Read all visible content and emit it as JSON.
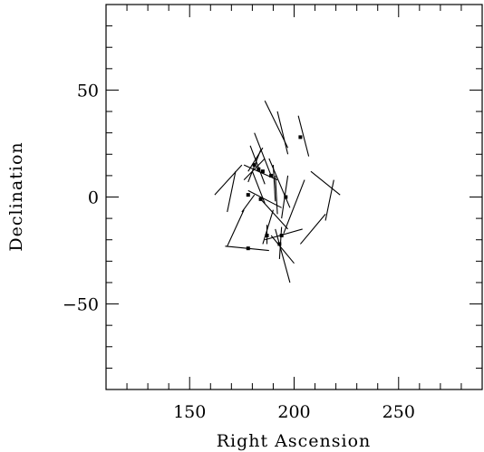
{
  "chart_data": {
    "type": "scatter",
    "xlabel": "Right Ascension",
    "ylabel": "Declination",
    "xlim": [
      110,
      290
    ],
    "ylim": [
      -90,
      90
    ],
    "xticks": [
      150,
      200,
      250
    ],
    "yticks": [
      -50,
      0,
      50
    ],
    "xminor_step": 10,
    "yminor_step": 10,
    "color": "#000000",
    "segments": [
      {
        "x1": 186,
        "y1": 45,
        "x2": 197,
        "y2": 23
      },
      {
        "x1": 192,
        "y1": 40,
        "x2": 197,
        "y2": 20
      },
      {
        "x1": 202,
        "y1": 38,
        "x2": 207,
        "y2": 19
      },
      {
        "x1": 179,
        "y1": 24,
        "x2": 186,
        "y2": 6
      },
      {
        "x1": 181,
        "y1": 30,
        "x2": 189,
        "y2": 10
      },
      {
        "x1": 185,
        "y1": 23,
        "x2": 178,
        "y2": 12
      },
      {
        "x1": 186,
        "y1": 18,
        "x2": 176,
        "y2": 8
      },
      {
        "x1": 184,
        "y1": 22,
        "x2": 178,
        "y2": 7
      },
      {
        "x1": 176,
        "y1": 15,
        "x2": 192,
        "y2": 8
      },
      {
        "x1": 190,
        "y1": 15,
        "x2": 191,
        "y2": -2
      },
      {
        "x1": 188,
        "y1": 18,
        "x2": 198,
        "y2": -5
      },
      {
        "x1": 191,
        "y1": 10,
        "x2": 192,
        "y2": -8
      },
      {
        "x1": 197,
        "y1": 10,
        "x2": 194,
        "y2": -10
      },
      {
        "x1": 180,
        "y1": 12,
        "x2": 186,
        "y2": -3
      },
      {
        "x1": 175,
        "y1": 15,
        "x2": 162,
        "y2": 1
      },
      {
        "x1": 172,
        "y1": 12,
        "x2": 168,
        "y2": -7
      },
      {
        "x1": 178,
        "y1": 3,
        "x2": 194,
        "y2": -5
      },
      {
        "x1": 184,
        "y1": -1,
        "x2": 197,
        "y2": -15
      },
      {
        "x1": 205,
        "y1": 8,
        "x2": 195,
        "y2": -17
      },
      {
        "x1": 208,
        "y1": 12,
        "x2": 222,
        "y2": 1
      },
      {
        "x1": 219,
        "y1": 8,
        "x2": 215,
        "y2": -11
      },
      {
        "x1": 215,
        "y1": -8,
        "x2": 203,
        "y2": -22
      },
      {
        "x1": 181,
        "y1": 1,
        "x2": 175,
        "y2": -7
      },
      {
        "x1": 176,
        "y1": -6,
        "x2": 168,
        "y2": -23
      },
      {
        "x1": 167,
        "y1": -23,
        "x2": 188,
        "y2": -25
      },
      {
        "x1": 185,
        "y1": -22,
        "x2": 190,
        "y2": -6
      },
      {
        "x1": 186,
        "y1": -20,
        "x2": 204,
        "y2": -15
      },
      {
        "x1": 189,
        "y1": -18,
        "x2": 200,
        "y2": -31
      },
      {
        "x1": 191,
        "y1": -15,
        "x2": 198,
        "y2": -40
      },
      {
        "x1": 194,
        "y1": -14,
        "x2": 193,
        "y2": -29
      },
      {
        "x1": 187,
        "y1": -13,
        "x2": 187,
        "y2": -22
      }
    ],
    "points": [
      {
        "x": 203,
        "y": 28
      },
      {
        "x": 181,
        "y": 15
      },
      {
        "x": 183,
        "y": 13
      },
      {
        "x": 185,
        "y": 12
      },
      {
        "x": 189,
        "y": 10
      },
      {
        "x": 196,
        "y": 0
      },
      {
        "x": 178,
        "y": 1
      },
      {
        "x": 184,
        "y": -1
      },
      {
        "x": 187,
        "y": -18
      },
      {
        "x": 194,
        "y": -18
      },
      {
        "x": 193,
        "y": -22
      },
      {
        "x": 178,
        "y": -24
      }
    ]
  }
}
